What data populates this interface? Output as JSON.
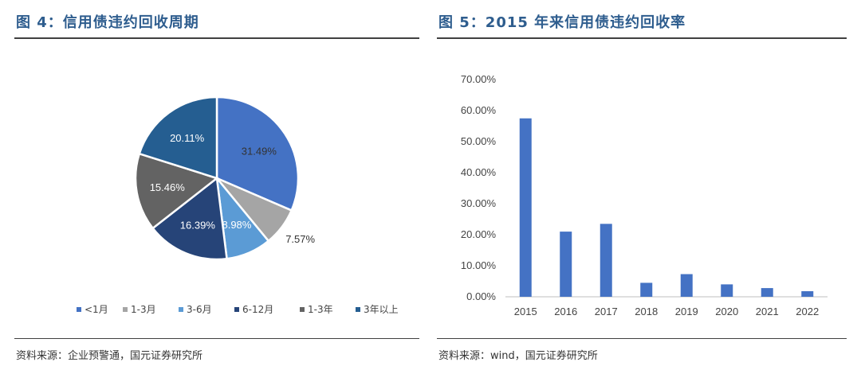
{
  "left": {
    "title": "图 4：信用债违约回收周期",
    "source": "资料来源：企业预警通，国元证券研究所"
  },
  "right": {
    "title": "图 5：2015 年来信用债违约回收率",
    "source": "资料来源：wind，国元证券研究所"
  },
  "chart_data": [
    {
      "type": "pie",
      "categories": [
        "<1月",
        "1-3月",
        "3-6月",
        "6-12月",
        "1-3年",
        "3年以上"
      ],
      "values": [
        31.49,
        7.57,
        8.98,
        16.39,
        15.46,
        20.11
      ],
      "labels": [
        "31.49%",
        "7.57%",
        "8.98%",
        "16.39%",
        "15.46%",
        "20.11%"
      ],
      "colors": [
        "#4472c4",
        "#a5a5a5",
        "#5b9bd5",
        "#264478",
        "#636363",
        "#255e91"
      ],
      "legend": "bottom"
    },
    {
      "type": "bar",
      "categories": [
        "2015",
        "2016",
        "2017",
        "2018",
        "2019",
        "2020",
        "2021",
        "2022"
      ],
      "values": [
        57.5,
        21.0,
        23.5,
        4.5,
        7.3,
        4.0,
        2.8,
        1.8
      ],
      "ylim": [
        0,
        70
      ],
      "yticks": [
        "0.00%",
        "10.00%",
        "20.00%",
        "30.00%",
        "40.00%",
        "50.00%",
        "60.00%",
        "70.00%"
      ],
      "color": "#4472c4",
      "grid": false
    }
  ]
}
